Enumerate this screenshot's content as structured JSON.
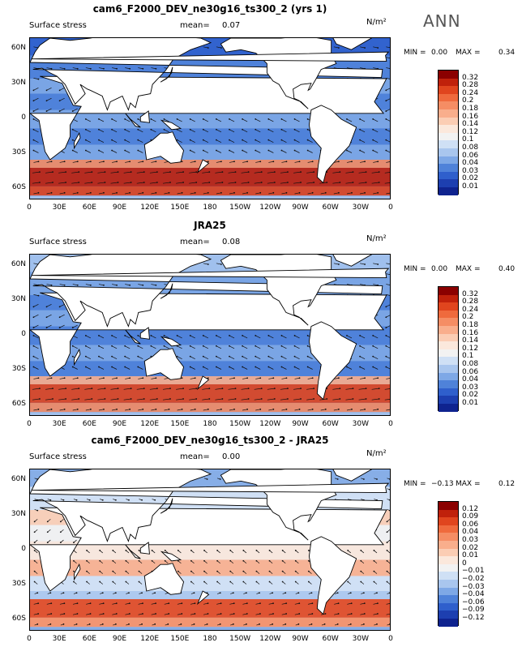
{
  "season": "ANN",
  "panels": [
    {
      "title": "cam6_F2000_DEV_ne30g16_ts300_2 (yrs 1)",
      "variable": "Surface stress",
      "mean_label": "mean=",
      "mean_value": "0.07",
      "units": "N/m²",
      "min_label": "MIN =",
      "min_value": "0.00",
      "max_label": "MAX =",
      "max_value": "0.34",
      "colorbar": [
        "0.32",
        "0.28",
        "0.24",
        "0.2",
        "0.18",
        "0.16",
        "0.14",
        "0.12",
        "0.1",
        "0.08",
        "0.06",
        "0.04",
        "0.03",
        "0.02",
        "0.01"
      ],
      "colors": [
        "#8b0000",
        "#c0210b",
        "#e0451e",
        "#ef6a3d",
        "#f58d64",
        "#f9ae8c",
        "#fbcdb4",
        "#fbe8dc",
        "#f2f2f2",
        "#cfe0f5",
        "#a9c6ee",
        "#7ea8e6",
        "#4f82d9",
        "#2f5fcc",
        "#1d3fb0",
        "#0f238f"
      ]
    },
    {
      "title": "JRA25",
      "variable": "Surface stress",
      "mean_label": "mean=",
      "mean_value": "0.08",
      "units": "N/m²",
      "min_label": "MIN =",
      "min_value": "0.00",
      "max_label": "MAX =",
      "max_value": "0.40",
      "colorbar": [
        "0.32",
        "0.28",
        "0.24",
        "0.2",
        "0.18",
        "0.16",
        "0.14",
        "0.12",
        "0.1",
        "0.08",
        "0.06",
        "0.04",
        "0.03",
        "0.02",
        "0.01"
      ],
      "colors": [
        "#8b0000",
        "#c0210b",
        "#e0451e",
        "#ef6a3d",
        "#f58d64",
        "#f9ae8c",
        "#fbcdb4",
        "#fbe8dc",
        "#f2f2f2",
        "#cfe0f5",
        "#a9c6ee",
        "#7ea8e6",
        "#4f82d9",
        "#2f5fcc",
        "#1d3fb0",
        "#0f238f"
      ]
    },
    {
      "title": "cam6_F2000_DEV_ne30g16_ts300_2 - JRA25",
      "variable": "Surface stress",
      "mean_label": "mean=",
      "mean_value": "0.00",
      "units": "N/m²",
      "min_label": "MIN =",
      "min_value": "−0.13",
      "max_label": "MAX =",
      "max_value": "0.12",
      "colorbar": [
        "0.12",
        "0.09",
        "0.06",
        "0.04",
        "0.03",
        "0.02",
        "0.01",
        "0",
        "−0.01",
        "−0.02",
        "−0.03",
        "−0.04",
        "−0.06",
        "−0.09",
        "−0.12"
      ],
      "colors": [
        "#8b0000",
        "#c0210b",
        "#e0451e",
        "#ef6a3d",
        "#f58d64",
        "#f9ae8c",
        "#fbcdb4",
        "#fbe8dc",
        "#f2f2f2",
        "#cfe0f5",
        "#a9c6ee",
        "#7ea8e6",
        "#4f82d9",
        "#2f5fcc",
        "#1d3fb0",
        "#0f238f"
      ]
    }
  ],
  "lat_labels": [
    "60N",
    "30N",
    "0",
    "30S",
    "60S"
  ],
  "lon_labels": [
    "0",
    "30E",
    "60E",
    "90E",
    "120E",
    "150E",
    "180",
    "150W",
    "120W",
    "90W",
    "60W",
    "30W",
    "0"
  ]
}
